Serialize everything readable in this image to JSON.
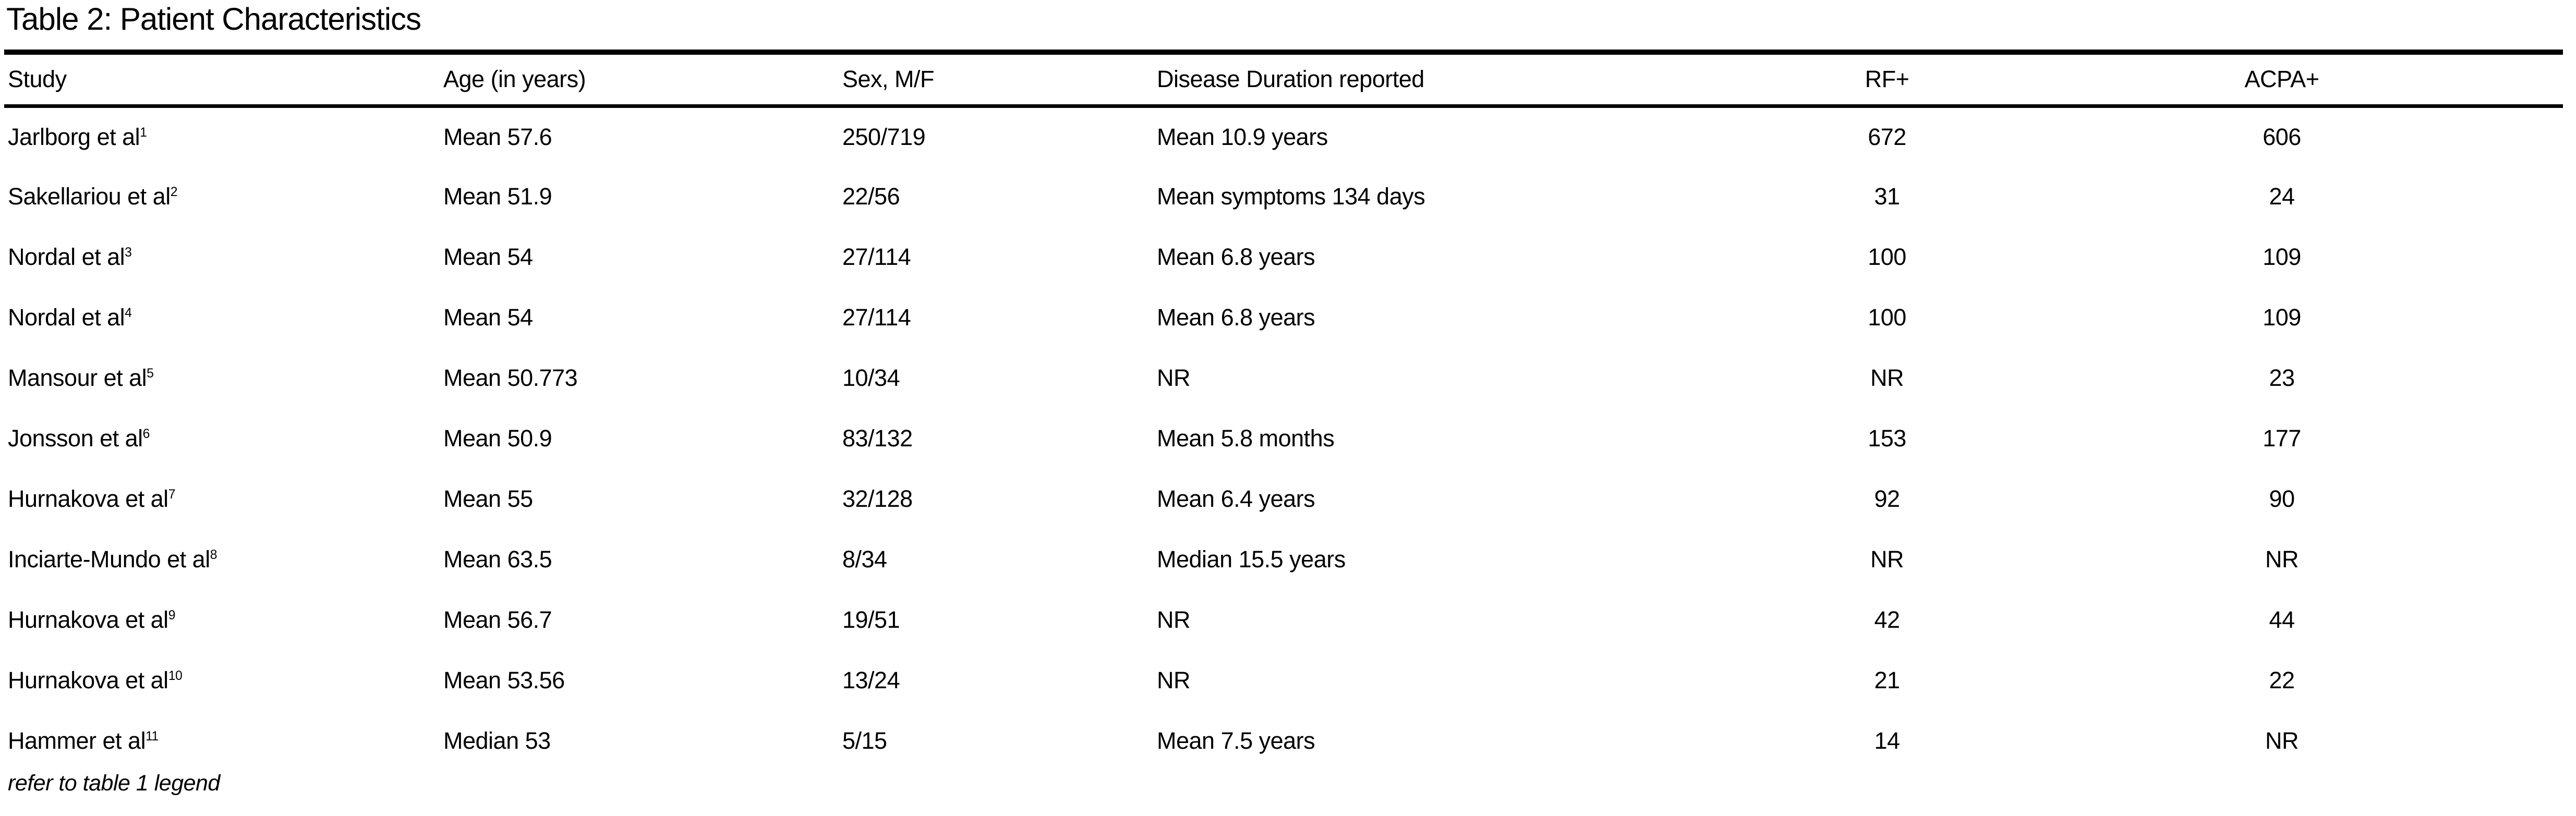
{
  "colors": {
    "background": "#ffffff",
    "text": "#000000",
    "rule": "#000000"
  },
  "table": {
    "title": "Table 2: Patient Characteristics",
    "columns": [
      "Study",
      "Age (in years)",
      "Sex, M/F",
      "Disease Duration reported",
      "RF+",
      "ACPA+"
    ],
    "rows": [
      {
        "study": "Jarlborg et al",
        "ref": "1",
        "age": "Mean 57.6",
        "sex": "250/719",
        "duration": "Mean 10.9 years",
        "rf": "672",
        "acpa": "606"
      },
      {
        "study": "Sakellariou et al",
        "ref": "2",
        "age": "Mean 51.9",
        "sex": "22/56",
        "duration": "Mean symptoms 134 days",
        "rf": "31",
        "acpa": "24"
      },
      {
        "study": "Nordal et al",
        "ref": "3",
        "age": "Mean 54",
        "sex": "27/114",
        "duration": "Mean 6.8 years",
        "rf": "100",
        "acpa": "109"
      },
      {
        "study": "Nordal et al",
        "ref": "4",
        "age": "Mean 54",
        "sex": "27/114",
        "duration": "Mean 6.8 years",
        "rf": "100",
        "acpa": "109"
      },
      {
        "study": "Mansour et al",
        "ref": "5",
        "age": "Mean 50.773",
        "sex": "10/34",
        "duration": "NR",
        "rf": "NR",
        "acpa": "23"
      },
      {
        "study": "Jonsson et al",
        "ref": "6",
        "age": "Mean 50.9",
        "sex": "83/132",
        "duration": "Mean 5.8 months",
        "rf": "153",
        "acpa": "177"
      },
      {
        "study": "Hurnakova et al",
        "ref": "7",
        "age": "Mean 55",
        "sex": "32/128",
        "duration": "Mean 6.4 years",
        "rf": "92",
        "acpa": "90"
      },
      {
        "study": "Inciarte-Mundo et al",
        "ref": "8",
        "age": "Mean 63.5",
        "sex": "8/34",
        "duration": "Median 15.5 years",
        "rf": "NR",
        "acpa": "NR"
      },
      {
        "study": "Hurnakova et al",
        "ref": "9",
        "age": "Mean 56.7",
        "sex": "19/51",
        "duration": "NR",
        "rf": "42",
        "acpa": "44"
      },
      {
        "study": "Hurnakova et al",
        "ref": "10",
        "age": "Mean 53.56",
        "sex": "13/24",
        "duration": "NR",
        "rf": "21",
        "acpa": "22"
      },
      {
        "study": "Hammer et al",
        "ref": "11",
        "age": "Median 53",
        "sex": "5/15",
        "duration": "Mean 7.5 years",
        "rf": "14",
        "acpa": "NR"
      }
    ],
    "footnote": "refer to table 1 legend"
  }
}
